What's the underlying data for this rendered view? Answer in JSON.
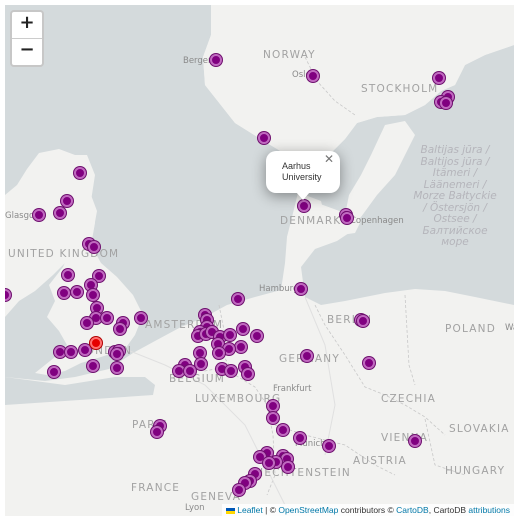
{
  "zoom": {
    "in_label": "+",
    "out_label": "−"
  },
  "popup": {
    "text": "Aarhus University",
    "close_label": "✕"
  },
  "attribution": {
    "leaflet": "Leaflet",
    "sep1": " | © ",
    "osm": "OpenStreetMap",
    "mid": " contributors © ",
    "carto": "CartoDB",
    "sep2": ", CartoDB ",
    "attributions": "attributions"
  },
  "labels": {
    "norway": "NORWAY",
    "denmark": "DENMARK",
    "uk": "UNITED KINGDOM",
    "poland": "POLAND",
    "germany": "GERMANY",
    "belgium": "BELGIUM",
    "luxembourg": "LUXEMBOURG",
    "czechia": "CZECHIA",
    "slovakia": "SLOVAKIA",
    "austria": "AUSTRIA",
    "hungary": "HUNGARY",
    "liechtenstein": "LIECHTENSTEIN",
    "france": "FRANCE",
    "bergen": "Bergen",
    "oslo": "Oslo",
    "stockholm": "STOCKHOLM",
    "copenhagen": "Copenhagen",
    "hamburg": "Hamburg",
    "berlin": "BERLIN",
    "amsterdam": "AMSTERDAM",
    "london": "LONDON",
    "frankfurt": "Frankfurt",
    "munich": "Munich",
    "vienna": "VIENNA",
    "paris": "PARIS",
    "geneva": "GENEVA",
    "lyon": "Lyon",
    "glasgow": "Glasgow",
    "baltic": "Baltijas jūra / Baltijos jūra / Itämeri / Läänemeri / Morze Bałtyckie / Östersjön / Ostsee / Балтийское море",
    "warszawa": "Wa"
  },
  "map_style": {
    "land": "#f2f2f0",
    "water": "#d4dadc",
    "marker": "#800080",
    "selected": "#e60000"
  }
}
